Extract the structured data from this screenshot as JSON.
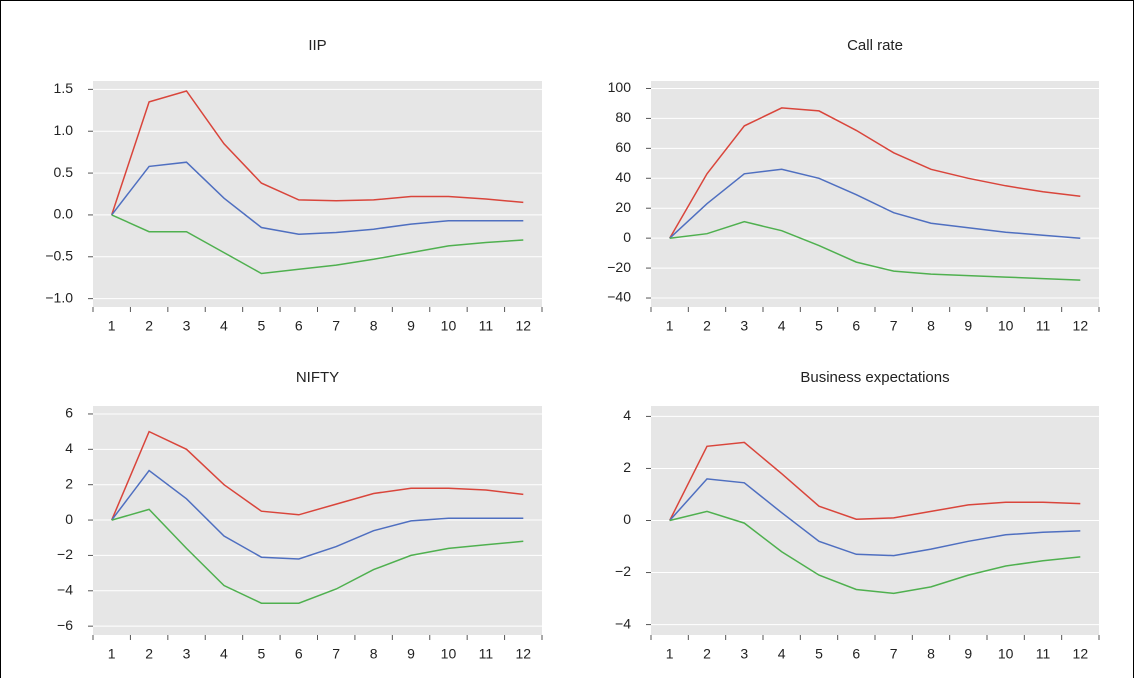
{
  "chart_data": [
    {
      "type": "line",
      "title": "IIP",
      "categories": [
        "1",
        "2",
        "3",
        "4",
        "5",
        "6",
        "7",
        "8",
        "9",
        "10",
        "11",
        "12"
      ],
      "ylim": [
        -1.1,
        1.6
      ],
      "yticks": [
        {
          "value": -1,
          "label": "−1.0"
        },
        {
          "value": -0.5,
          "label": "−0.5"
        },
        {
          "value": 0,
          "label": "0.0"
        },
        0.5,
        {
          "value": 1,
          "label": "1.0"
        },
        1.5
      ],
      "grid": true,
      "series": [
        {
          "color": "#d9453b",
          "values": [
            0,
            1.35,
            1.48,
            0.85,
            0.38,
            0.18,
            0.17,
            0.18,
            0.22,
            0.22,
            0.19,
            0.15
          ]
        },
        {
          "color": "#4f6fc0",
          "values": [
            0,
            0.58,
            0.63,
            0.2,
            -0.15,
            -0.23,
            -0.21,
            -0.17,
            -0.11,
            -0.07,
            -0.07,
            -0.07
          ]
        },
        {
          "color": "#4fb04f",
          "values": [
            0,
            -0.2,
            -0.2,
            -0.45,
            -0.7,
            -0.65,
            -0.6,
            -0.53,
            -0.45,
            -0.37,
            -0.33,
            -0.3
          ]
        }
      ]
    },
    {
      "type": "line",
      "title": "Call rate",
      "categories": [
        "1",
        "2",
        "3",
        "4",
        "5",
        "6",
        "7",
        "8",
        "9",
        "10",
        "11",
        "12"
      ],
      "ylim": [
        -46,
        105
      ],
      "yticks": [
        {
          "value": -40,
          "label": "−40"
        },
        {
          "value": -20,
          "label": "−20"
        },
        0,
        20,
        40,
        60,
        80,
        100
      ],
      "grid": true,
      "series": [
        {
          "color": "#d9453b",
          "values": [
            0,
            43,
            75,
            87,
            85,
            72,
            57,
            46,
            40,
            35,
            31,
            28
          ]
        },
        {
          "color": "#4f6fc0",
          "values": [
            0,
            23,
            43,
            46,
            40,
            29,
            17,
            10,
            7,
            4,
            2,
            0
          ]
        },
        {
          "color": "#4fb04f",
          "values": [
            0,
            3,
            11,
            5,
            -5,
            -16,
            -22,
            -24,
            -25,
            -26,
            -27,
            -28
          ]
        }
      ]
    },
    {
      "type": "line",
      "title": "NIFTY",
      "categories": [
        "1",
        "2",
        "3",
        "4",
        "5",
        "6",
        "7",
        "8",
        "9",
        "10",
        "11",
        "12"
      ],
      "ylim": [
        -6.5,
        6.45
      ],
      "yticks": [
        {
          "value": -6,
          "label": "−6"
        },
        {
          "value": -4,
          "label": "−4"
        },
        {
          "value": -2,
          "label": "−2"
        },
        0,
        2,
        4,
        6
      ],
      "grid": true,
      "series": [
        {
          "color": "#d9453b",
          "values": [
            0,
            5,
            4,
            2,
            0.5,
            0.3,
            0.9,
            1.5,
            1.8,
            1.8,
            1.7,
            1.45
          ]
        },
        {
          "color": "#4f6fc0",
          "values": [
            0,
            2.8,
            1.2,
            -0.9,
            -2.1,
            -2.2,
            -1.5,
            -0.6,
            -0.05,
            0.1,
            0.1,
            0.1
          ]
        },
        {
          "color": "#4fb04f",
          "values": [
            0,
            0.6,
            -1.6,
            -3.7,
            -4.7,
            -4.7,
            -3.9,
            -2.8,
            -2,
            -1.6,
            -1.4,
            -1.2
          ]
        }
      ]
    },
    {
      "type": "line",
      "title": "Business expectations",
      "categories": [
        "1",
        "2",
        "3",
        "4",
        "5",
        "6",
        "7",
        "8",
        "9",
        "10",
        "11",
        "12"
      ],
      "ylim": [
        -4.4,
        4.4
      ],
      "yticks": [
        {
          "value": -4,
          "label": "−4"
        },
        {
          "value": -2,
          "label": "−2"
        },
        0,
        2,
        4
      ],
      "grid": true,
      "series": [
        {
          "color": "#d9453b",
          "values": [
            0,
            2.85,
            3,
            1.8,
            0.55,
            0.05,
            0.1,
            0.35,
            0.6,
            0.7,
            0.7,
            0.65
          ]
        },
        {
          "color": "#4f6fc0",
          "values": [
            0,
            1.6,
            1.45,
            0.3,
            -0.8,
            -1.3,
            -1.35,
            -1.1,
            -0.8,
            -0.55,
            -0.45,
            -0.4
          ]
        },
        {
          "color": "#4fb04f",
          "values": [
            0,
            0.35,
            -0.1,
            -1.2,
            -2.1,
            -2.65,
            -2.8,
            -2.55,
            -2.1,
            -1.75,
            -1.55,
            -1.4
          ]
        }
      ]
    }
  ]
}
